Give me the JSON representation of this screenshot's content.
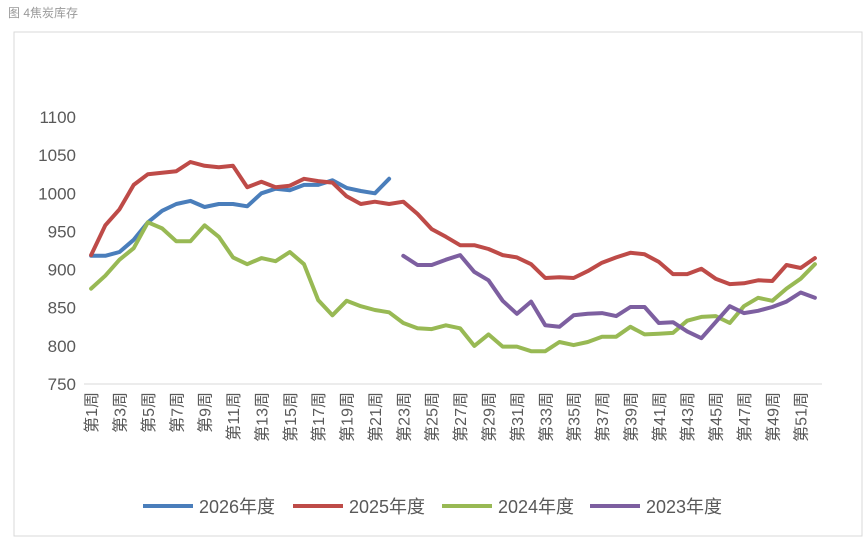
{
  "header": "图 4焦炭库存",
  "chart_data": {
    "type": "line",
    "categories": [
      "第1周",
      null,
      "第3周",
      null,
      "第5周",
      null,
      "第7周",
      null,
      "第9周",
      null,
      "第11周",
      null,
      "第13周",
      null,
      "第15周",
      null,
      "第17周",
      null,
      "第19周",
      null,
      "第21周",
      null,
      "第23周",
      null,
      "第25周",
      null,
      "第27周",
      null,
      "第29周",
      null,
      "第31周",
      null,
      "第33周",
      null,
      "第35周",
      null,
      "第37周",
      null,
      "第39周",
      null,
      "第41周",
      null,
      "第43周",
      null,
      "第45周",
      null,
      "第47周",
      null,
      "第49周",
      null,
      "第51周",
      null
    ],
    "ylim": [
      750,
      1100
    ],
    "yticks": [
      750,
      800,
      850,
      900,
      950,
      1000,
      1050,
      1100
    ],
    "grid": false,
    "legend": "bottom",
    "series": [
      {
        "name": "2026年度",
        "color": "#4a7ebb",
        "values": [
          918,
          918,
          923,
          939,
          962,
          977,
          986,
          990,
          982,
          986,
          986,
          983,
          1000,
          1006,
          1004,
          1011,
          1011,
          1017,
          1007,
          1003,
          1000,
          1019,
          null,
          null,
          null,
          null,
          null,
          null,
          null,
          null,
          null,
          null,
          null,
          null,
          null,
          null,
          null,
          null,
          null,
          null,
          null,
          null,
          null,
          null,
          null,
          null,
          null,
          null,
          null,
          null,
          null,
          null
        ]
      },
      {
        "name": "2025年度",
        "color": "#be4b48",
        "values": [
          919,
          958,
          979,
          1011,
          1025,
          1027,
          1029,
          1041,
          1036,
          1034,
          1036,
          1008,
          1015,
          1008,
          1010,
          1019,
          1016,
          1014,
          996,
          986,
          989,
          986,
          989,
          973,
          953,
          943,
          932,
          932,
          927,
          919,
          916,
          907,
          889,
          890,
          889,
          898,
          909,
          916,
          922,
          920,
          910,
          894,
          894,
          901,
          888,
          881,
          882,
          886,
          885,
          906,
          902,
          915
        ]
      },
      {
        "name": "2024年度",
        "color": "#98b954",
        "values": [
          875,
          892,
          913,
          928,
          962,
          954,
          937,
          937,
          958,
          943,
          916,
          907,
          915,
          911,
          923,
          907,
          860,
          840,
          859,
          852,
          847,
          844,
          830,
          823,
          822,
          827,
          823,
          800,
          815,
          799,
          799,
          793,
          793,
          805,
          801,
          805,
          812,
          812,
          825,
          815,
          816,
          817,
          833,
          838,
          839,
          830,
          852,
          863,
          859,
          875,
          888,
          907
        ]
      },
      {
        "name": "2023年度",
        "color": "#7d5fa0",
        "values": [
          null,
          null,
          null,
          null,
          null,
          null,
          null,
          null,
          null,
          null,
          null,
          null,
          null,
          null,
          null,
          null,
          null,
          null,
          null,
          null,
          null,
          null,
          918,
          906,
          906,
          913,
          919,
          897,
          886,
          859,
          842,
          858,
          827,
          825,
          840,
          842,
          843,
          839,
          851,
          851,
          830,
          831,
          819,
          810,
          831,
          852,
          843,
          846,
          851,
          858,
          870,
          863
        ]
      }
    ]
  }
}
